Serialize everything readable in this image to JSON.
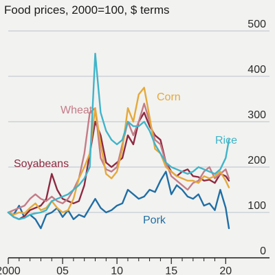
{
  "chart_data": {
    "type": "line",
    "title": "Food prices, 2000=100, $ terms",
    "xlim": [
      2000,
      2021.5
    ],
    "ylim": [
      0,
      500
    ],
    "y_ticks": [
      100,
      200,
      300,
      400,
      500
    ],
    "y_tick_labels": [
      "100",
      "200",
      "300",
      "400",
      "500"
    ],
    "y_zero_label": "0",
    "x_tick_labels": [
      {
        "year": 2000,
        "label": "2000"
      },
      {
        "year": 2005,
        "label": "05"
      },
      {
        "year": 2010,
        "label": "10"
      },
      {
        "year": 2015,
        "label": "15"
      },
      {
        "year": 2020,
        "label": "20"
      }
    ],
    "x_minor_ticks": [
      2001,
      2002,
      2003,
      2004,
      2006,
      2007,
      2008,
      2009,
      2011,
      2012,
      2013,
      2014,
      2016,
      2017,
      2018,
      2019
    ],
    "grid": true,
    "colors": {
      "background": "#f2f2f0",
      "gridline": "#b9c3cc",
      "axis": "#1a1a1a"
    },
    "series": [
      {
        "name": "Pork",
        "color": "#1f6ea5",
        "x": [
          2000,
          2000.5,
          2001,
          2001.5,
          2002,
          2002.5,
          2003,
          2003.5,
          2004,
          2004.5,
          2005,
          2005.5,
          2006,
          2006.5,
          2007,
          2007.5,
          2008,
          2008.5,
          2009,
          2009.5,
          2010,
          2010.5,
          2011,
          2011.5,
          2012,
          2012.5,
          2013,
          2013.5,
          2014,
          2014.5,
          2015,
          2015.5,
          2016,
          2016.5,
          2017,
          2017.5,
          2018,
          2018.5,
          2019,
          2019.5,
          2020,
          2020.3
        ],
        "y": [
          100,
          95,
          115,
          88,
          95,
          85,
          65,
          95,
          100,
          110,
          90,
          105,
          85,
          95,
          90,
          110,
          130,
          110,
          100,
          105,
          115,
          120,
          150,
          140,
          130,
          135,
          150,
          145,
          170,
          190,
          140,
          160,
          150,
          135,
          130,
          140,
          115,
          120,
          105,
          150,
          110,
          65
        ]
      },
      {
        "name": "Soyabeans",
        "color": "#8e2940",
        "x": [
          2000,
          2000.5,
          2001,
          2001.5,
          2002,
          2002.5,
          2003,
          2003.5,
          2004,
          2004.5,
          2005,
          2005.5,
          2006,
          2006.5,
          2007,
          2007.5,
          2008,
          2008.5,
          2009,
          2009.5,
          2010,
          2010.5,
          2011,
          2011.5,
          2012,
          2012.5,
          2013,
          2013.5,
          2014,
          2014.5,
          2015,
          2015.5,
          2016,
          2016.5,
          2017,
          2017.5,
          2018,
          2018.5,
          2019,
          2019.5,
          2020,
          2020.3
        ],
        "y": [
          100,
          90,
          85,
          92,
          105,
          110,
          115,
          130,
          185,
          150,
          130,
          125,
          120,
          125,
          160,
          230,
          300,
          270,
          210,
          200,
          210,
          220,
          270,
          250,
          300,
          320,
          290,
          270,
          260,
          210,
          190,
          180,
          190,
          195,
          180,
          178,
          170,
          172,
          165,
          185,
          180,
          170
        ]
      },
      {
        "name": "Wheat",
        "color": "#c47c87",
        "x": [
          2000,
          2000.5,
          2001,
          2001.5,
          2002,
          2002.5,
          2003,
          2003.5,
          2004,
          2004.5,
          2005,
          2005.5,
          2006,
          2006.5,
          2007,
          2007.5,
          2008,
          2008.5,
          2009,
          2009.5,
          2010,
          2010.5,
          2011,
          2011.5,
          2012,
          2012.5,
          2013,
          2013.5,
          2014,
          2014.5,
          2015,
          2015.5,
          2016,
          2016.5,
          2017,
          2017.5,
          2018,
          2018.5,
          2019,
          2019.5,
          2020,
          2020.3
        ],
        "y": [
          100,
          105,
          110,
          115,
          130,
          140,
          130,
          125,
          135,
          125,
          120,
          130,
          150,
          175,
          230,
          320,
          330,
          220,
          195,
          190,
          200,
          250,
          300,
          270,
          300,
          340,
          300,
          260,
          250,
          210,
          180,
          170,
          160,
          150,
          165,
          170,
          190,
          200,
          175,
          185,
          195,
          175
        ]
      },
      {
        "name": "Corn",
        "color": "#e4a93b",
        "x": [
          2000,
          2000.5,
          2001,
          2001.5,
          2002,
          2002.5,
          2003,
          2003.5,
          2004,
          2004.5,
          2005,
          2005.5,
          2006,
          2006.5,
          2007,
          2007.5,
          2008,
          2008.5,
          2009,
          2009.5,
          2010,
          2010.5,
          2011,
          2011.5,
          2012,
          2012.5,
          2013,
          2013.5,
          2014,
          2014.5,
          2015,
          2015.5,
          2016,
          2016.5,
          2017,
          2017.5,
          2018,
          2018.5,
          2019,
          2019.5,
          2020,
          2020.3
        ],
        "y": [
          100,
          95,
          100,
          98,
          110,
          120,
          105,
          110,
          125,
          110,
          100,
          105,
          130,
          175,
          200,
          230,
          330,
          250,
          185,
          175,
          190,
          240,
          330,
          300,
          360,
          375,
          310,
          240,
          230,
          200,
          190,
          180,
          175,
          170,
          170,
          165,
          180,
          175,
          180,
          190,
          170,
          155
        ]
      },
      {
        "name": "Rice",
        "color": "#3fb4c9",
        "x": [
          2000,
          2000.5,
          2001,
          2001.5,
          2002,
          2002.5,
          2003,
          2003.5,
          2004,
          2004.5,
          2005,
          2005.5,
          2006,
          2006.5,
          2007,
          2007.5,
          2008,
          2008.5,
          2009,
          2009.5,
          2010,
          2010.5,
          2011,
          2011.5,
          2012,
          2012.5,
          2013,
          2013.5,
          2014,
          2014.5,
          2015,
          2015.5,
          2016,
          2016.5,
          2017,
          2017.5,
          2018,
          2018.5,
          2019,
          2019.5,
          2020,
          2020.3
        ],
        "y": [
          100,
          90,
          85,
          88,
          95,
          98,
          100,
          105,
          125,
          130,
          135,
          140,
          150,
          160,
          175,
          200,
          450,
          320,
          280,
          260,
          250,
          260,
          300,
          290,
          290,
          300,
          280,
          250,
          230,
          210,
          200,
          195,
          190,
          185,
          190,
          200,
          195,
          190,
          185,
          195,
          220,
          260
        ]
      }
    ],
    "series_labels": [
      {
        "series": "Wheat",
        "text": "Wheat"
      },
      {
        "series": "Corn",
        "text": "Corn"
      },
      {
        "series": "Rice",
        "text": "Rice"
      },
      {
        "series": "Soyabeans",
        "text": "Soyabeans"
      },
      {
        "series": "Pork",
        "text": "Pork"
      }
    ]
  }
}
